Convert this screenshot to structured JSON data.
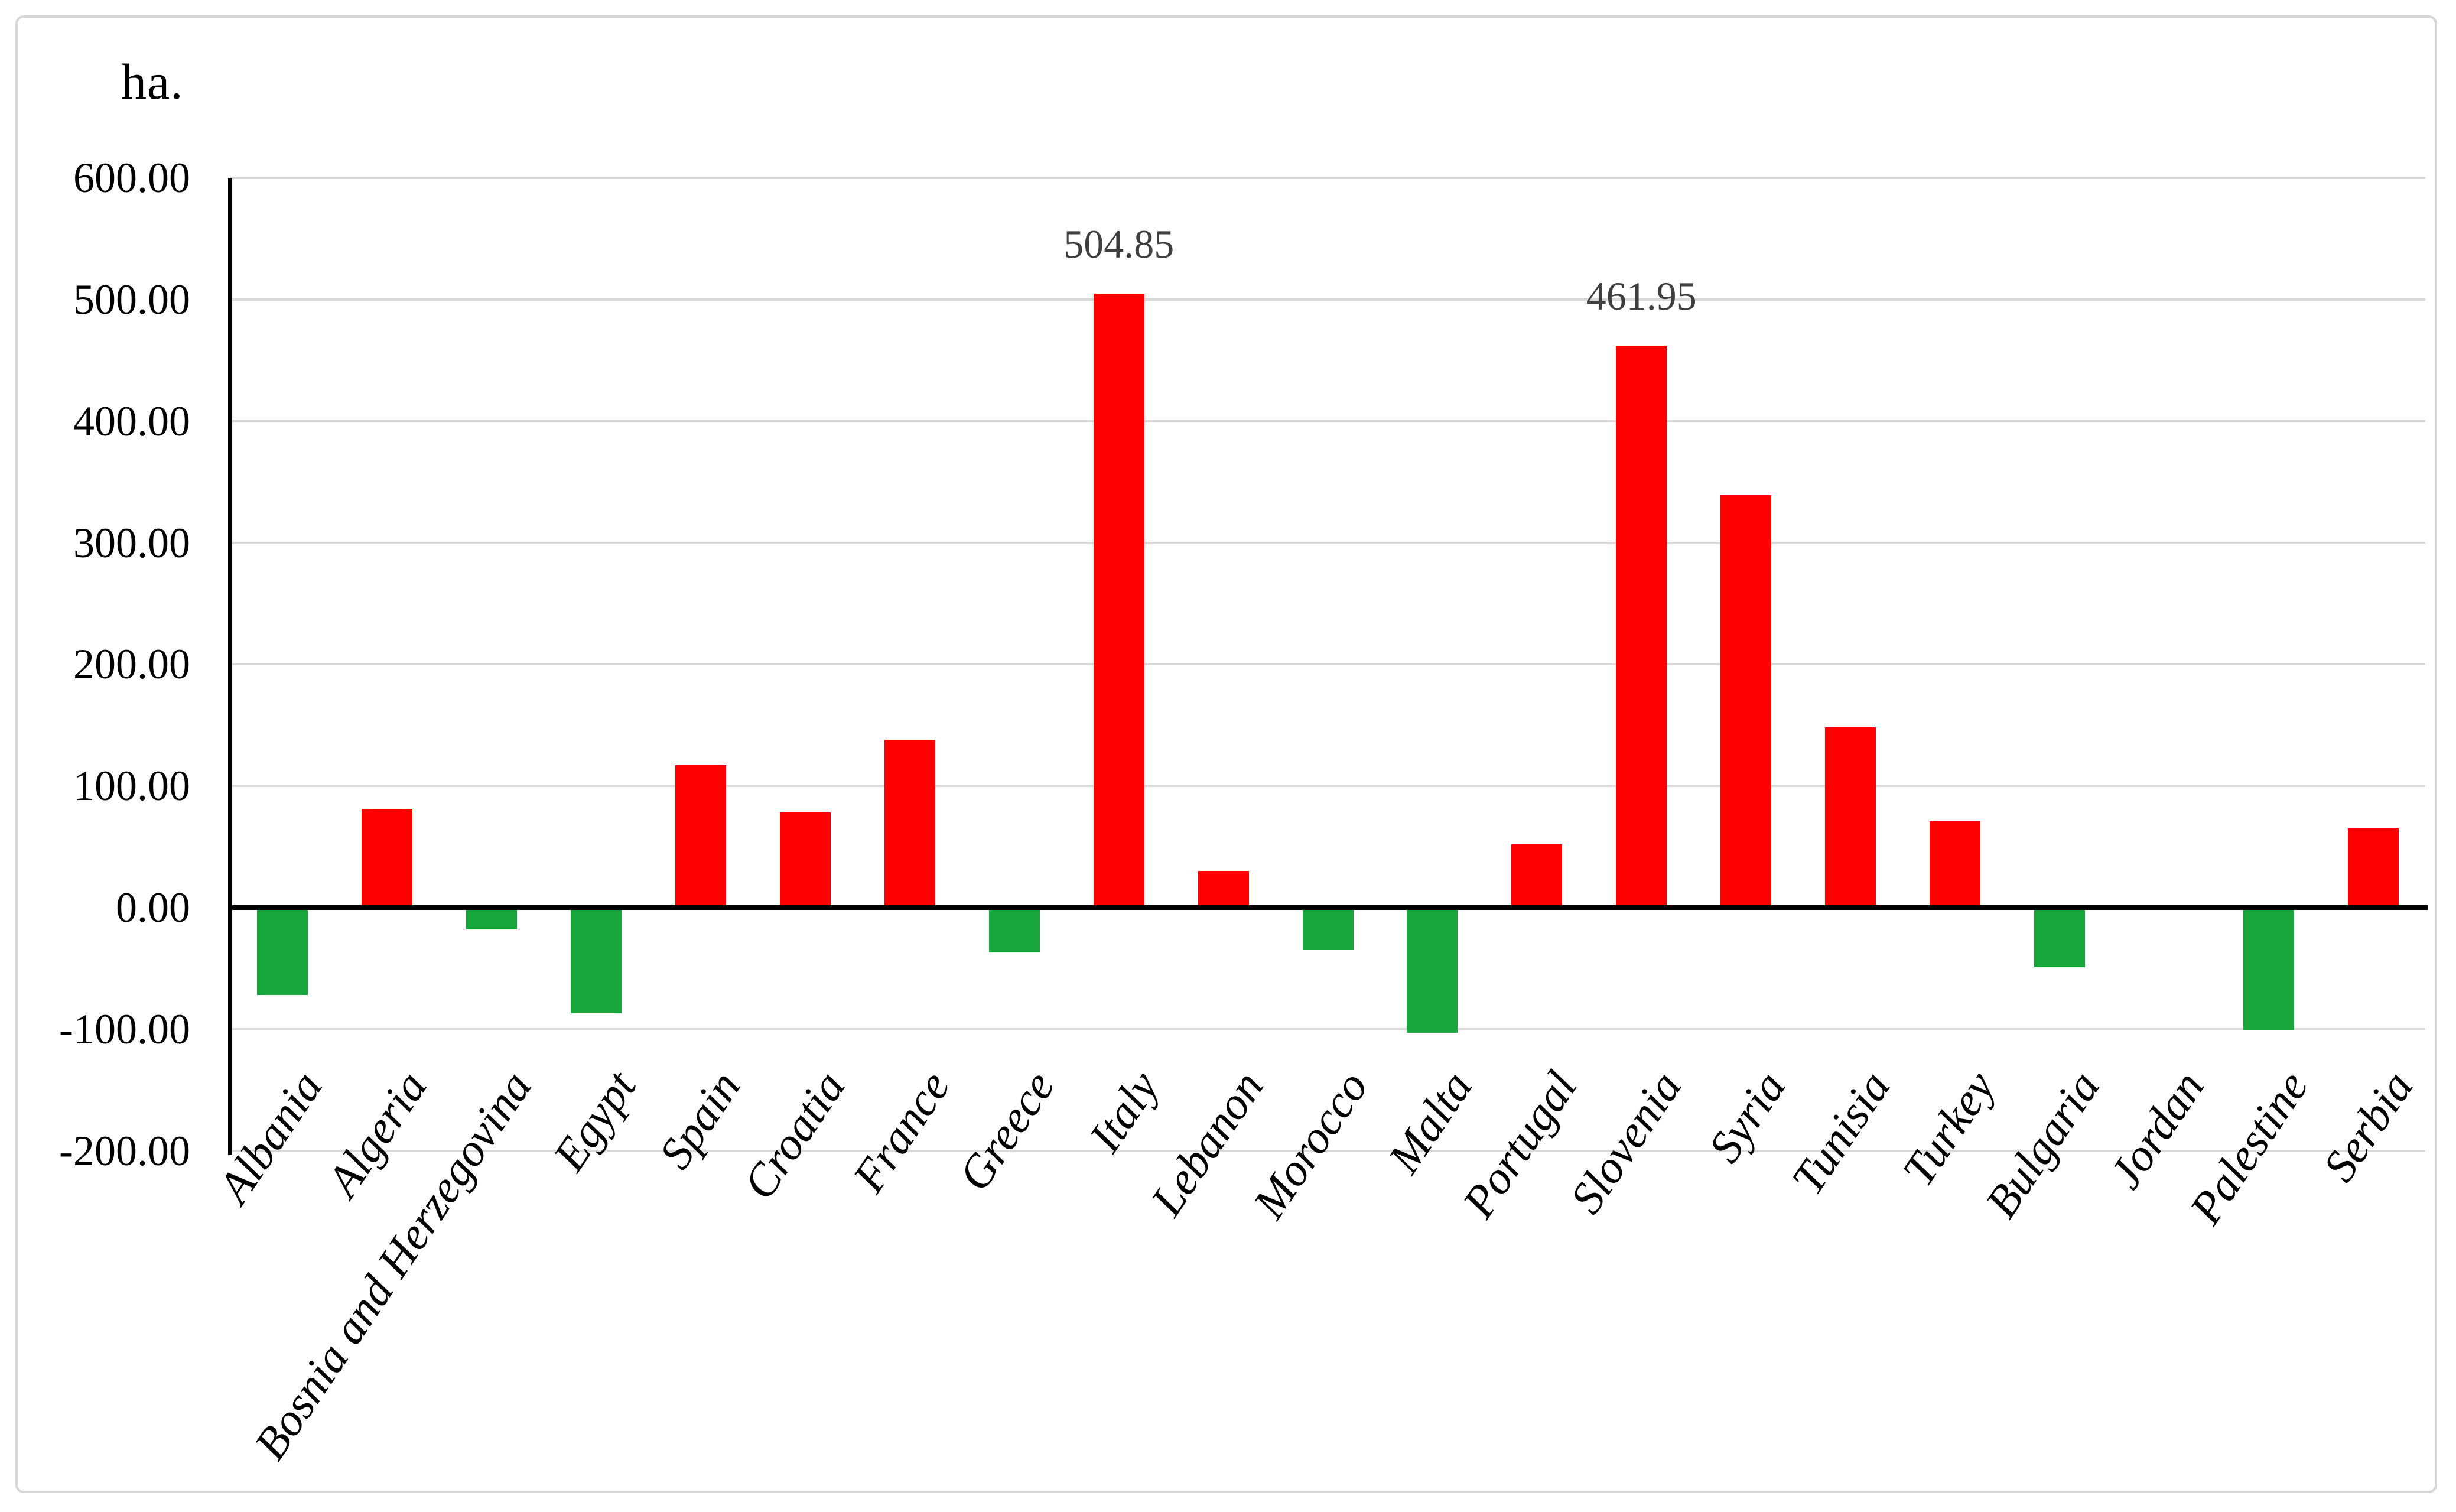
{
  "figure": {
    "unit_label": "ha."
  },
  "chart_data": {
    "type": "bar",
    "title": "",
    "unit_label": "ha.",
    "xlabel": "",
    "ylabel": "ha.",
    "categories": [
      "Albania",
      "Algeria",
      "Bosnia and Herzegovina",
      "Egypt",
      "Spain",
      "Croatia",
      "France",
      "Greece",
      "Italy",
      "Lebanon",
      "Morocco",
      "Malta",
      "Portugal",
      "Slovenia",
      "Syria",
      "Tunisia",
      "Turkey",
      "Bulgaria",
      "Jordan",
      "Palestine",
      "Serbia"
    ],
    "values": [
      -72,
      81,
      -18,
      -87,
      117,
      78,
      138,
      -37,
      504.85,
      30,
      -35,
      -103,
      52,
      461.95,
      339,
      148,
      71,
      -49,
      0,
      -101,
      65
    ],
    "data_labels": [
      {
        "category": "Italy",
        "label": "504.85"
      },
      {
        "category": "Slovenia",
        "label": "461.95"
      }
    ],
    "y_axis": {
      "min": -200,
      "max": 600,
      "step": 100,
      "tick_labels": [
        "600.00",
        "500.00",
        "400.00",
        "300.00",
        "200.00",
        "100.00",
        "0.00",
        "-100.00",
        "-200.00"
      ]
    },
    "grid": true,
    "legend": "none",
    "bar_color_rule": "red for positive values, green for negative values",
    "colors": {
      "positive_bar": "#FF0000",
      "negative_bar": "#16A63C",
      "gridline": "#D9D9D9",
      "axis_line": "#000000",
      "data_label_text": "#3F3F3F",
      "frame_border": "#D6D6D6"
    }
  }
}
